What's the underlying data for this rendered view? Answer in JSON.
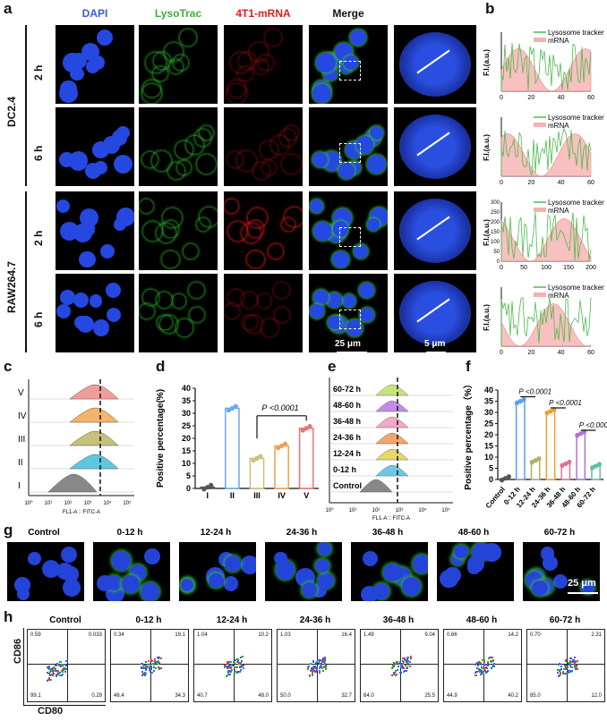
{
  "panel_a": {
    "letter": "a",
    "channels": [
      "DAPI",
      "LysoTrac",
      "4T1-mRNA",
      "Merge"
    ],
    "channel_colors": [
      "#3a5bd9",
      "#3fae3f",
      "#d62020",
      "#111111"
    ],
    "cell_groups": [
      "DC2.4",
      "RAW264.7"
    ],
    "rows": [
      "2 h",
      "6 h",
      "2 h",
      "6 h"
    ],
    "scale_merge": "25 μm",
    "scale_zoom": "5 μm"
  },
  "panel_b": {
    "letter": "b",
    "ylabel": "F.I.(a.u.)",
    "legend": [
      "Lysosome tracker",
      "mRNA"
    ]
  },
  "panel_c": {
    "letter": "c",
    "groups": [
      "V",
      "IV",
      "III",
      "II",
      "I"
    ],
    "xlabel": "FL1-A :: FITC-A"
  },
  "panel_d": {
    "letter": "d",
    "ylabel": "Positive percentage(%)",
    "pval": "P <0.0001"
  },
  "panel_e": {
    "letter": "e",
    "groups": [
      "60-72 h",
      "48-60 h",
      "36-48 h",
      "24-36 h",
      "12-24 h",
      "0-12 h",
      "Control"
    ],
    "xlabel": "FL1-A :: FITC-A"
  },
  "panel_f": {
    "letter": "f",
    "ylabel": "Positive percentage（%）",
    "pvals": [
      "P <0.0001",
      "P <0.0001",
      "P <0.0001"
    ]
  },
  "panel_g": {
    "letter": "g",
    "titles": [
      "Control",
      "0-12 h",
      "12-24 h",
      "24-36 h",
      "36-48 h",
      "48-60 h",
      "60-72 h"
    ],
    "scale": "25 μm"
  },
  "panel_h": {
    "letter": "h",
    "titles": [
      "Control",
      "0-12 h",
      "12-24 h",
      "24-36 h",
      "36-48 h",
      "48-60 h",
      "60-72 h"
    ],
    "ylabel": "CD86",
    "xlabel": "CD80",
    "quadrants": [
      {
        "ul": "0.59",
        "ur": "0.033",
        "ll": "99.1",
        "lr": "0.29"
      },
      {
        "ul": "0.34",
        "ur": "19.1",
        "ll": "46.4",
        "lr": "34.3"
      },
      {
        "ul": "1.04",
        "ur": "10.2",
        "ll": "40.7",
        "lr": "48.0"
      },
      {
        "ul": "1.03",
        "ur": "16.4",
        "ll": "50.0",
        "lr": "32.7"
      },
      {
        "ul": "1.49",
        "ur": "9.04",
        "ll": "64.0",
        "lr": "25.5"
      },
      {
        "ul": "0.66",
        "ur": "14.2",
        "ll": "44.9",
        "lr": "40.2"
      },
      {
        "ul": "0.70",
        "ur": "2.31",
        "ll": "85.0",
        "lr": "12.0"
      }
    ]
  },
  "chart_data": [
    {
      "type": "bar",
      "title": "",
      "categories": [
        "I",
        "II",
        "III",
        "IV",
        "V"
      ],
      "values": [
        0.5,
        32,
        12,
        17,
        24
      ],
      "ylabel": "Positive percentage(%)",
      "ylim": [
        0,
        40
      ],
      "yticks": [
        0,
        5,
        10,
        15,
        20,
        25,
        30,
        35,
        40
      ],
      "colors": [
        "#555555",
        "#6aa8f0",
        "#c9c07a",
        "#f0a050",
        "#f07070"
      ]
    },
    {
      "type": "bar",
      "title": "",
      "categories": [
        "Control",
        "0-12 h",
        "12-24 h",
        "24-36 h",
        "36-48 h",
        "48-60 h",
        "60-72 h"
      ],
      "values": [
        0.5,
        35,
        8.5,
        30.5,
        7,
        20.5,
        6
      ],
      "ylabel": "Positive percentage（%）",
      "ylim": [
        0,
        40
      ],
      "yticks": [
        0,
        5,
        10,
        15,
        20,
        25,
        30,
        35,
        40
      ],
      "colors": [
        "#555555",
        "#5aa0f0",
        "#b0b060",
        "#f0a030",
        "#e07090",
        "#b070e0",
        "#60c0a0"
      ]
    }
  ]
}
